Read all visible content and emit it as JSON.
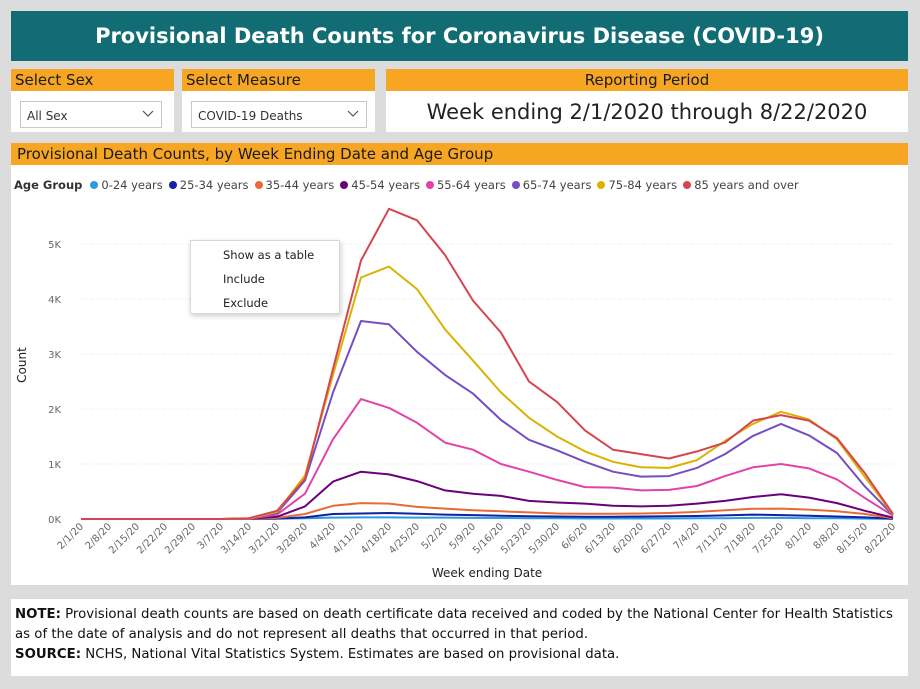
{
  "title": "Provisional Death Counts for Coronavirus Disease (COVID-19)",
  "filters": {
    "sex": {
      "label": "Select Sex",
      "value": "All Sex"
    },
    "measure": {
      "label": "Select Measure",
      "value": "COVID-19 Deaths"
    },
    "period": {
      "label": "Reporting Period",
      "value": "Week ending 2/1/2020 through 8/22/2020"
    }
  },
  "chart_header": "Provisional Death Counts, by Week Ending Date and Age Group",
  "legend_title": "Age Group",
  "context_menu": [
    "Show as a table",
    "Include",
    "Exclude"
  ],
  "note": {
    "note_label": "NOTE:",
    "note_text": " Provisional death counts are based on death certificate data received and coded by the National Center for Health Statistics as of the date of analysis and do not represent all deaths that occurred in that period.",
    "source_label": "SOURCE:",
    "source_text": " NCHS, National Vital Statistics System. Estimates are based on provisional data."
  },
  "colors": {
    "accent": "#f6a623",
    "title_bg": "#126c74"
  },
  "chart_data": {
    "type": "line",
    "xlabel": "Week ending Date",
    "ylabel": "Count",
    "ylim": [
      0,
      5800
    ],
    "yticks": [
      0,
      1000,
      2000,
      3000,
      4000,
      5000
    ],
    "ytick_labels": [
      "0K",
      "1K",
      "2K",
      "3K",
      "4K",
      "5K"
    ],
    "legend_position": "top-left",
    "grid": true,
    "x": [
      "2/1/20",
      "2/8/20",
      "2/15/20",
      "2/22/20",
      "2/29/20",
      "3/7/20",
      "3/14/20",
      "3/21/20",
      "3/28/20",
      "4/4/20",
      "4/11/20",
      "4/18/20",
      "4/25/20",
      "5/2/20",
      "5/9/20",
      "5/16/20",
      "5/23/20",
      "5/30/20",
      "6/6/20",
      "6/13/20",
      "6/20/20",
      "6/27/20",
      "7/4/20",
      "7/11/20",
      "7/18/20",
      "7/25/20",
      "8/1/20",
      "8/8/20",
      "8/15/20",
      "8/22/20"
    ],
    "series": [
      {
        "name": "0-24 years",
        "color": "#2b9be6",
        "values": [
          0,
          0,
          0,
          0,
          0,
          0,
          0,
          5,
          15,
          25,
          30,
          30,
          25,
          25,
          20,
          18,
          15,
          12,
          10,
          10,
          10,
          10,
          12,
          15,
          20,
          20,
          15,
          12,
          8,
          2
        ]
      },
      {
        "name": "25-34 years",
        "color": "#12239e",
        "values": [
          0,
          0,
          0,
          0,
          0,
          0,
          0,
          10,
          30,
          90,
          100,
          110,
          95,
          80,
          70,
          60,
          50,
          45,
          40,
          40,
          45,
          50,
          55,
          65,
          80,
          70,
          60,
          45,
          30,
          5
        ]
      },
      {
        "name": "35-44 years",
        "color": "#e66c37",
        "values": [
          0,
          0,
          0,
          0,
          0,
          0,
          0,
          20,
          90,
          240,
          290,
          280,
          220,
          190,
          160,
          140,
          120,
          100,
          95,
          95,
          100,
          110,
          130,
          160,
          185,
          190,
          170,
          140,
          90,
          15
        ]
      },
      {
        "name": "45-54 years",
        "color": "#6b007b",
        "values": [
          0,
          0,
          0,
          0,
          0,
          0,
          5,
          40,
          230,
          680,
          860,
          810,
          690,
          520,
          460,
          420,
          330,
          300,
          280,
          240,
          230,
          240,
          280,
          330,
          400,
          450,
          390,
          290,
          150,
          25
        ]
      },
      {
        "name": "55-64 years",
        "color": "#e044a7",
        "values": [
          0,
          0,
          0,
          0,
          0,
          0,
          5,
          80,
          460,
          1450,
          2180,
          2020,
          1750,
          1390,
          1260,
          1000,
          860,
          710,
          580,
          570,
          520,
          530,
          600,
          780,
          940,
          1000,
          920,
          720,
          380,
          60
        ]
      },
      {
        "name": "65-74 years",
        "color": "#744ec2",
        "values": [
          0,
          0,
          0,
          0,
          0,
          0,
          10,
          110,
          700,
          2300,
          3600,
          3540,
          3040,
          2620,
          2280,
          1800,
          1440,
          1250,
          1040,
          860,
          770,
          780,
          930,
          1180,
          1510,
          1730,
          1520,
          1200,
          590,
          70
        ]
      },
      {
        "name": "75-84 years",
        "color": "#d9b300",
        "values": [
          0,
          0,
          0,
          0,
          0,
          0,
          10,
          130,
          790,
          2620,
          4390,
          4590,
          4180,
          3450,
          2880,
          2300,
          1840,
          1500,
          1230,
          1040,
          940,
          930,
          1070,
          1420,
          1730,
          1950,
          1810,
          1450,
          760,
          80
        ]
      },
      {
        "name": "85 years and over",
        "color": "#d64550",
        "values": [
          0,
          0,
          0,
          0,
          0,
          0,
          15,
          150,
          730,
          2730,
          4700,
          5640,
          5430,
          4800,
          3970,
          3390,
          2500,
          2130,
          1610,
          1260,
          1180,
          1100,
          1230,
          1390,
          1790,
          1890,
          1790,
          1470,
          830,
          90
        ]
      }
    ]
  }
}
